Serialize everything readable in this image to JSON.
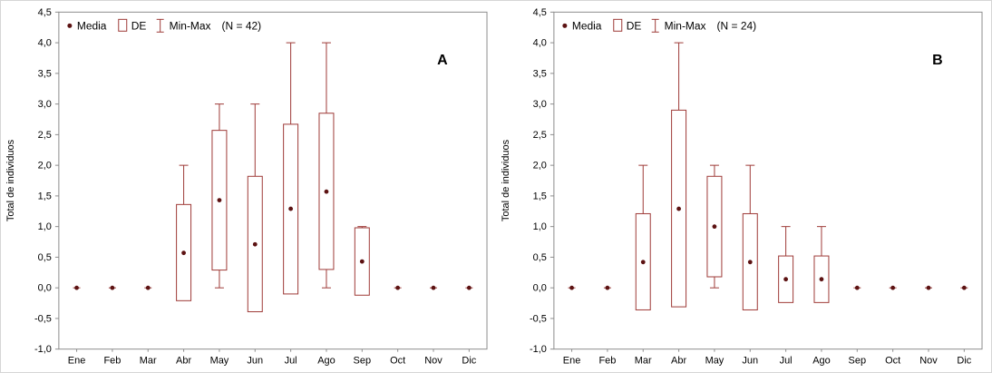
{
  "figure": {
    "panels": [
      "A",
      "B"
    ]
  },
  "colors": {
    "box": "#9e3a37",
    "whisker": "#9e3a37",
    "mean_dot": "#5c1212",
    "axis": "#8c8c8c",
    "text": "#000000",
    "background": "#ffffff"
  },
  "chart_data": [
    {
      "type": "boxplot",
      "panel_label": "A",
      "legend": {
        "media_label": "Media",
        "de_label": "DE",
        "minmax_label": "Min-Max",
        "n_label": "(N = 42)"
      },
      "ylabel": "Total de individuos",
      "ylim": [
        -1.0,
        4.5
      ],
      "ytick_step": 0.5,
      "decimal_separator": ",",
      "grid": false,
      "legend_position": "top-left-inside",
      "categories": [
        "Ene",
        "Feb",
        "Mar",
        "Abr",
        "May",
        "Jun",
        "Jul",
        "Ago",
        "Sep",
        "Oct",
        "Nov",
        "Dic"
      ],
      "series": [
        {
          "month": "Ene",
          "mean": 0,
          "sd_low": 0,
          "sd_high": 0,
          "min": 0,
          "max": 0
        },
        {
          "month": "Feb",
          "mean": 0,
          "sd_low": 0,
          "sd_high": 0,
          "min": 0,
          "max": 0
        },
        {
          "month": "Mar",
          "mean": 0,
          "sd_low": 0,
          "sd_high": 0,
          "min": 0,
          "max": 0
        },
        {
          "month": "Abr",
          "mean": 0.57,
          "sd_low": -0.21,
          "sd_high": 1.36,
          "min": 0,
          "max": 2.0
        },
        {
          "month": "May",
          "mean": 1.43,
          "sd_low": 0.29,
          "sd_high": 2.57,
          "min": 0,
          "max": 3.0
        },
        {
          "month": "Jun",
          "mean": 0.71,
          "sd_low": -0.39,
          "sd_high": 1.82,
          "min": 0,
          "max": 3.0
        },
        {
          "month": "Jul",
          "mean": 1.29,
          "sd_low": -0.1,
          "sd_high": 2.67,
          "min": 0,
          "max": 4.0
        },
        {
          "month": "Ago",
          "mean": 1.57,
          "sd_low": 0.3,
          "sd_high": 2.85,
          "min": 0,
          "max": 4.0
        },
        {
          "month": "Sep",
          "mean": 0.43,
          "sd_low": -0.12,
          "sd_high": 0.98,
          "min": 0,
          "max": 1.0
        },
        {
          "month": "Oct",
          "mean": 0,
          "sd_low": 0,
          "sd_high": 0,
          "min": 0,
          "max": 0
        },
        {
          "month": "Nov",
          "mean": 0,
          "sd_low": 0,
          "sd_high": 0,
          "min": 0,
          "max": 0
        },
        {
          "month": "Dic",
          "mean": 0,
          "sd_low": 0,
          "sd_high": 0,
          "min": 0,
          "max": 0
        }
      ]
    },
    {
      "type": "boxplot",
      "panel_label": "B",
      "legend": {
        "media_label": "Media",
        "de_label": "DE",
        "minmax_label": "Min-Max",
        "n_label": "(N = 24)"
      },
      "ylabel": "Total de individuos",
      "ylim": [
        -1.0,
        4.5
      ],
      "ytick_step": 0.5,
      "decimal_separator": ",",
      "grid": false,
      "legend_position": "top-left-inside",
      "categories": [
        "Ene",
        "Feb",
        "Mar",
        "Abr",
        "May",
        "Jun",
        "Jul",
        "Ago",
        "Sep",
        "Oct",
        "Nov",
        "Dic"
      ],
      "series": [
        {
          "month": "Ene",
          "mean": 0,
          "sd_low": 0,
          "sd_high": 0,
          "min": 0,
          "max": 0
        },
        {
          "month": "Feb",
          "mean": 0,
          "sd_low": 0,
          "sd_high": 0,
          "min": 0,
          "max": 0
        },
        {
          "month": "Mar",
          "mean": 0.42,
          "sd_low": -0.36,
          "sd_high": 1.21,
          "min": 0,
          "max": 2.0
        },
        {
          "month": "Abr",
          "mean": 1.29,
          "sd_low": -0.31,
          "sd_high": 2.9,
          "min": 0,
          "max": 4.0
        },
        {
          "month": "May",
          "mean": 1.0,
          "sd_low": 0.18,
          "sd_high": 1.82,
          "min": 0,
          "max": 2.0
        },
        {
          "month": "Jun",
          "mean": 0.42,
          "sd_low": -0.36,
          "sd_high": 1.21,
          "min": 0,
          "max": 2.0
        },
        {
          "month": "Jul",
          "mean": 0.14,
          "sd_low": -0.24,
          "sd_high": 0.52,
          "min": 0,
          "max": 1.0
        },
        {
          "month": "Ago",
          "mean": 0.14,
          "sd_low": -0.24,
          "sd_high": 0.52,
          "min": 0,
          "max": 1.0
        },
        {
          "month": "Sep",
          "mean": 0,
          "sd_low": 0,
          "sd_high": 0,
          "min": 0,
          "max": 0
        },
        {
          "month": "Oct",
          "mean": 0,
          "sd_low": 0,
          "sd_high": 0,
          "min": 0,
          "max": 0
        },
        {
          "month": "Nov",
          "mean": 0,
          "sd_low": 0,
          "sd_high": 0,
          "min": 0,
          "max": 0
        },
        {
          "month": "Dic",
          "mean": 0,
          "sd_low": 0,
          "sd_high": 0,
          "min": 0,
          "max": 0
        }
      ]
    }
  ]
}
